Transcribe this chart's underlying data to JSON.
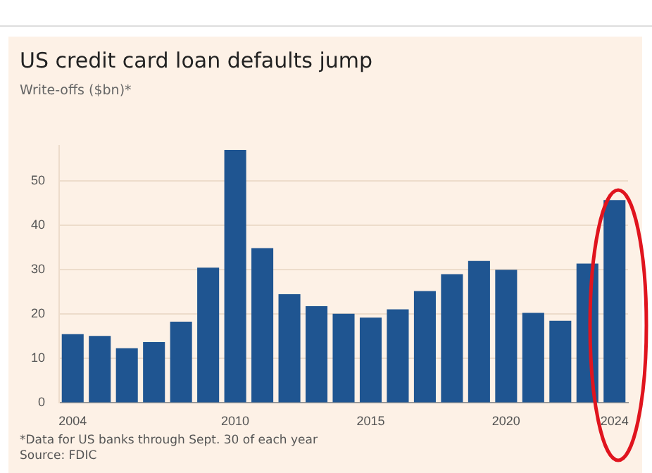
{
  "chart_data": {
    "type": "bar",
    "title": "US credit card loan defaults jump",
    "subtitle": "Write-offs ($bn)*",
    "categories": [
      "2004",
      null,
      null,
      null,
      null,
      null,
      "2010",
      null,
      null,
      null,
      null,
      "2015",
      null,
      null,
      null,
      null,
      "2020",
      null,
      null,
      null,
      "2024"
    ],
    "values": [
      15.5,
      15.1,
      12.3,
      13.7,
      18.3,
      30.5,
      57.0,
      34.9,
      24.5,
      21.8,
      20.1,
      19.2,
      21.1,
      25.2,
      29.0,
      32.0,
      30.0,
      20.3,
      18.5,
      31.4,
      45.7
    ],
    "color": "#1f5591",
    "ylim": [
      0,
      58
    ],
    "yticks": [
      0,
      10,
      20,
      30,
      40,
      50
    ],
    "grid": "y",
    "legend": false,
    "annotations": [
      "*Data for US banks through Sept. 30 of each year",
      "Source: FDIC"
    ]
  }
}
